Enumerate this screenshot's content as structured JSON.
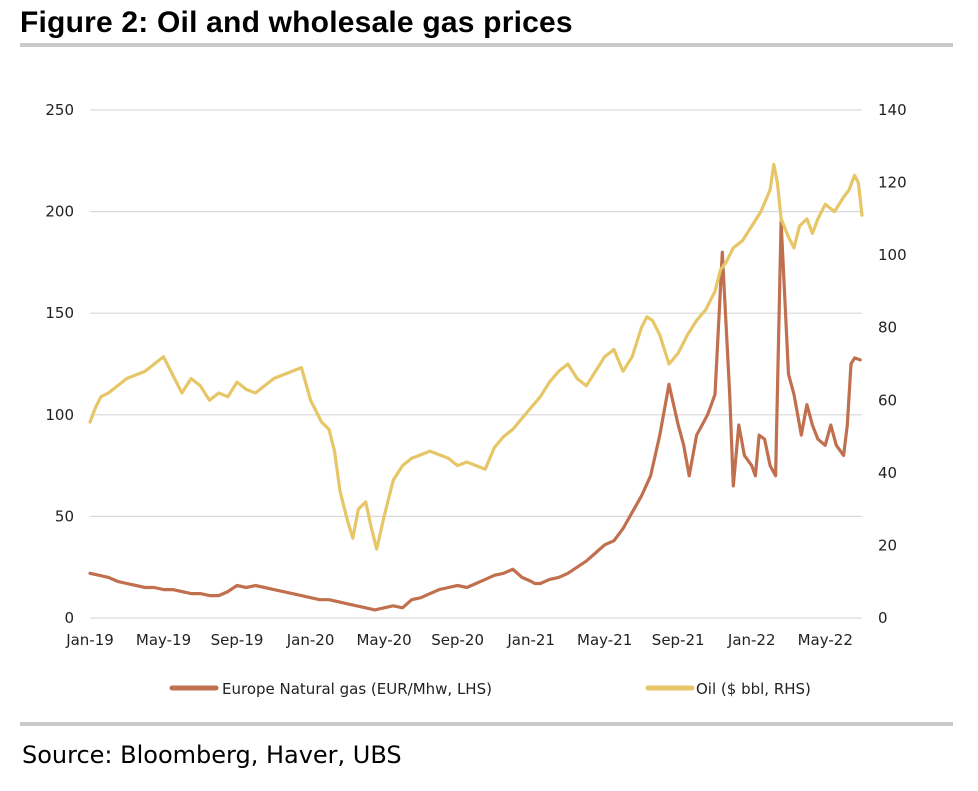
{
  "title": "Figure 2: Oil and wholesale gas prices",
  "source": "Source: Bloomberg, Haver, UBS",
  "colors": {
    "gas": "#c0704e",
    "oil": "#e6c667",
    "grid": "#d9d9d9"
  },
  "chart_data": {
    "type": "line",
    "categories": [
      "Jan-19",
      "May-19",
      "Sep-19",
      "Jan-20",
      "May-20",
      "Sep-20",
      "Jan-21",
      "May-21",
      "Sep-21",
      "Jan-22",
      "May-22"
    ],
    "x_range_months": [
      0,
      42
    ],
    "y_left": {
      "ylim": [
        0,
        250
      ],
      "ticks": [
        0,
        50,
        100,
        150,
        200,
        250
      ],
      "label": ""
    },
    "y_right": {
      "ylim": [
        0,
        140
      ],
      "ticks": [
        0,
        20,
        40,
        60,
        80,
        100,
        120,
        140
      ],
      "label": ""
    },
    "legend_position": "bottom",
    "grid": true,
    "series": [
      {
        "name": "Europe Natural gas (EUR/Mhw, LHS)",
        "axis": "left",
        "color": "#c0704e",
        "x": [
          0,
          0.5,
          1,
          1.5,
          2,
          2.5,
          3,
          3.5,
          4,
          4.5,
          5,
          5.5,
          6,
          6.5,
          7,
          7.5,
          8,
          8.5,
          9,
          9.5,
          10,
          10.5,
          11,
          11.5,
          12,
          12.5,
          13,
          13.5,
          14,
          14.5,
          15,
          15.5,
          16,
          16.5,
          17,
          17.5,
          18,
          18.5,
          19,
          19.5,
          20,
          20.5,
          21,
          21.5,
          22,
          22.5,
          23,
          23.5,
          24,
          24.2,
          24.5,
          25,
          25.5,
          26,
          26.5,
          27,
          27.5,
          28,
          28.5,
          29,
          29.5,
          30,
          30.5,
          31,
          31.5,
          32,
          32.3,
          32.6,
          33,
          33.3,
          33.6,
          34,
          34.4,
          34.8,
          35,
          35.3,
          35.6,
          36,
          36.2,
          36.4,
          36.7,
          37,
          37.3,
          37.6,
          38,
          38.3,
          38.5,
          38.7,
          39,
          39.3,
          39.6,
          40,
          40.3,
          40.6,
          41,
          41.2,
          41.4,
          41.6,
          41.9
        ],
        "values": [
          22,
          21,
          20,
          18,
          17,
          16,
          15,
          15,
          14,
          14,
          13,
          12,
          12,
          11,
          11,
          13,
          16,
          15,
          16,
          15,
          14,
          13,
          12,
          11,
          10,
          9,
          9,
          8,
          7,
          6,
          5,
          4,
          5,
          6,
          5,
          9,
          10,
          12,
          14,
          15,
          16,
          15,
          17,
          19,
          21,
          22,
          24,
          20,
          18,
          17,
          17,
          19,
          20,
          22,
          25,
          28,
          32,
          36,
          38,
          44,
          52,
          60,
          70,
          90,
          115,
          95,
          85,
          70,
          90,
          95,
          100,
          110,
          180,
          110,
          65,
          95,
          80,
          75,
          70,
          90,
          88,
          75,
          70,
          195,
          120,
          110,
          100,
          90,
          105,
          95,
          88,
          85,
          95,
          85,
          80,
          95,
          125,
          128,
          127
        ]
      },
      {
        "name": "Oil ($ bbl, RHS)",
        "axis": "right",
        "color": "#e6c667",
        "x": [
          0,
          0.3,
          0.6,
          1,
          1.5,
          2,
          2.5,
          3,
          3.5,
          4,
          4.5,
          5,
          5.5,
          6,
          6.5,
          7,
          7.5,
          8,
          8.5,
          9,
          9.5,
          10,
          10.5,
          11,
          11.5,
          12,
          12.3,
          12.6,
          13,
          13.3,
          13.6,
          14,
          14.3,
          14.6,
          15,
          15.3,
          15.6,
          16,
          16.5,
          17,
          17.5,
          18,
          18.5,
          19,
          19.5,
          20,
          20.5,
          21,
          21.5,
          22,
          22.5,
          23,
          23.5,
          24,
          24.5,
          25,
          25.5,
          26,
          26.5,
          27,
          27.5,
          28,
          28.5,
          29,
          29.5,
          30,
          30.3,
          30.6,
          31,
          31.5,
          32,
          32.5,
          33,
          33.5,
          34,
          34.3,
          34.6,
          35,
          35.5,
          36,
          36.5,
          37,
          37.2,
          37.4,
          37.6,
          38,
          38.3,
          38.6,
          39,
          39.3,
          39.6,
          40,
          40.5,
          41,
          41.3,
          41.6,
          41.8,
          42
        ],
        "values": [
          54,
          58,
          61,
          62,
          64,
          66,
          67,
          68,
          70,
          72,
          67,
          62,
          66,
          64,
          60,
          62,
          61,
          65,
          63,
          62,
          64,
          66,
          67,
          68,
          69,
          60,
          57,
          54,
          52,
          46,
          35,
          27,
          22,
          30,
          32,
          25,
          19,
          28,
          38,
          42,
          44,
          45,
          46,
          45,
          44,
          42,
          43,
          42,
          41,
          47,
          50,
          52,
          55,
          58,
          61,
          65,
          68,
          70,
          66,
          64,
          68,
          72,
          74,
          68,
          72,
          80,
          83,
          82,
          78,
          70,
          73,
          78,
          82,
          85,
          90,
          96,
          98,
          102,
          104,
          108,
          112,
          118,
          125,
          120,
          110,
          105,
          102,
          108,
          110,
          106,
          110,
          114,
          112,
          116,
          118,
          122,
          120,
          111
        ]
      }
    ]
  }
}
